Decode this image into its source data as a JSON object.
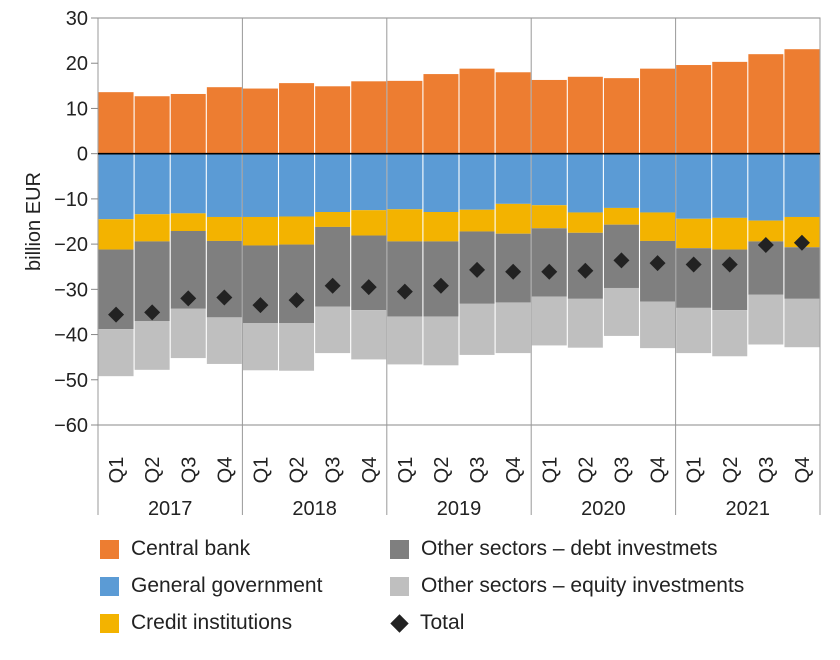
{
  "chart_data": {
    "type": "bar",
    "stacked": true,
    "ylabel": "billion EUR",
    "ylim": [
      -60,
      30
    ],
    "yticks": [
      30,
      20,
      10,
      0,
      -10,
      -20,
      -30,
      -40,
      -50,
      -60
    ],
    "ytick_labels": [
      "30",
      "20",
      "10",
      "0",
      "−10",
      "−20",
      "−30",
      "−40",
      "−50",
      "−60"
    ],
    "grid": "vertical-year-separators",
    "legend_position": "bottom",
    "groups": [
      "2017",
      "2018",
      "2019",
      "2020",
      "2021"
    ],
    "quarters": [
      "Q1",
      "Q2",
      "Q3",
      "Q4"
    ],
    "categories": [
      "2017 Q1",
      "2017 Q2",
      "2017 Q3",
      "2017 Q4",
      "2018 Q1",
      "2018 Q2",
      "2018 Q3",
      "2018 Q4",
      "2019 Q1",
      "2019 Q2",
      "2019 Q3",
      "2019 Q4",
      "2020 Q1",
      "2020 Q2",
      "2020 Q3",
      "2020 Q4",
      "2021 Q1",
      "2021 Q2",
      "2021 Q3",
      "2021 Q4"
    ],
    "series": [
      {
        "name": "Central bank",
        "color": "#ED7D31",
        "values": [
          13.6,
          12.7,
          13.2,
          14.7,
          14.4,
          15.6,
          14.9,
          16.0,
          16.1,
          17.6,
          18.8,
          18.0,
          16.3,
          17.0,
          16.7,
          18.8,
          19.6,
          20.3,
          22.0,
          23.1
        ]
      },
      {
        "name": "General government",
        "color": "#5B9BD5",
        "values": [
          -14.5,
          -13.4,
          -13.2,
          -14.0,
          -14.0,
          -13.9,
          -12.9,
          -12.5,
          -12.3,
          -12.9,
          -12.4,
          -11.1,
          -11.4,
          -13.0,
          -12.0,
          -13.0,
          -14.4,
          -14.2,
          -14.8,
          -14.0
        ]
      },
      {
        "name": "Credit institutions",
        "color": "#F3B300",
        "values": [
          -6.7,
          -6.0,
          -3.9,
          -5.3,
          -6.3,
          -6.2,
          -3.3,
          -5.6,
          -7.1,
          -6.5,
          -4.8,
          -6.6,
          -5.1,
          -4.5,
          -3.7,
          -6.3,
          -6.5,
          -7.0,
          -4.6,
          -6.7
        ]
      },
      {
        "name": "Other sectors – debt investmets",
        "color": "#7F7F7F",
        "values": [
          -17.6,
          -17.6,
          -17.2,
          -16.9,
          -17.2,
          -17.4,
          -17.6,
          -16.5,
          -16.6,
          -16.6,
          -16.0,
          -15.2,
          -15.1,
          -14.6,
          -14.0,
          -13.4,
          -13.2,
          -13.4,
          -11.8,
          -11.4
        ]
      },
      {
        "name": "Other sectors – equity investments",
        "color": "#BFBFBF",
        "values": [
          -10.4,
          -10.8,
          -10.9,
          -10.3,
          -10.4,
          -10.5,
          -10.3,
          -10.9,
          -10.6,
          -10.8,
          -11.3,
          -11.2,
          -10.8,
          -10.8,
          -10.6,
          -10.3,
          -10.0,
          -10.2,
          -11.0,
          -10.7
        ]
      }
    ],
    "total": {
      "name": "Total",
      "values": [
        -35.6,
        -35.1,
        -32.0,
        -31.8,
        -33.5,
        -32.4,
        -29.2,
        -29.5,
        -30.5,
        -29.2,
        -25.7,
        -26.1,
        -26.1,
        -25.9,
        -23.6,
        -24.2,
        -24.5,
        -24.5,
        -20.2,
        -19.7
      ]
    }
  }
}
